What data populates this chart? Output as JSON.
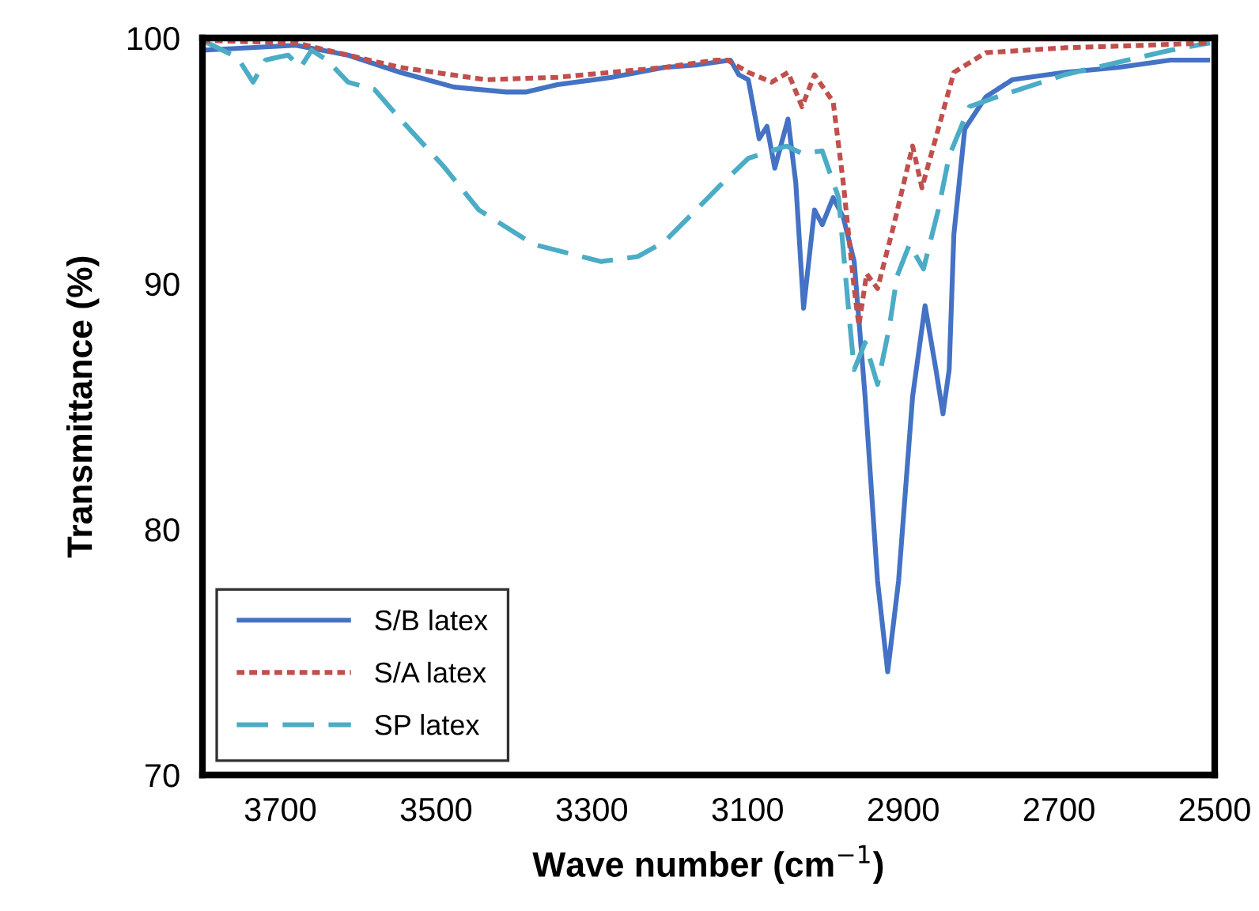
{
  "chart_data": {
    "type": "line",
    "xlabel": "Wave number (cm$^{−1}$)",
    "ylabel": "Transmittance (%)",
    "xlim": [
      3800,
      2500
    ],
    "xticks": [
      3700,
      3500,
      3300,
      3100,
      2900,
      2700,
      2500
    ],
    "ylim": [
      70,
      100
    ],
    "yticks": [
      70,
      80,
      90,
      100
    ],
    "grid": false,
    "legend": "bottom left",
    "series": [
      {
        "name": "S/B latex",
        "color": "#4472c4",
        "line_style": "solid",
        "x": [
          3800,
          3680,
          3613,
          3546,
          3477,
          3410,
          3384,
          3344,
          3274,
          3207,
          3166,
          3122,
          3111,
          3099,
          3085,
          3075,
          3065,
          3048,
          3038,
          3028,
          3014,
          3004,
          2990,
          2977,
          2963,
          2949,
          2933,
          2920,
          2906,
          2888,
          2872,
          2858,
          2849,
          2841,
          2835,
          2821,
          2794,
          2760,
          2693,
          2624,
          2557,
          2506
        ],
        "values": [
          99.5,
          99.7,
          99.3,
          98.6,
          98.0,
          97.8,
          97.8,
          98.1,
          98.4,
          98.8,
          98.9,
          99.1,
          98.5,
          98.3,
          95.9,
          96.4,
          94.7,
          96.7,
          94.1,
          89.0,
          93.0,
          92.4,
          93.5,
          92.7,
          90.9,
          85.4,
          77.9,
          74.2,
          77.9,
          85.4,
          89.1,
          86.5,
          84.7,
          86.5,
          92.0,
          96.3,
          97.6,
          98.3,
          98.6,
          98.8,
          99.1,
          99.1
        ]
      },
      {
        "name": "S/A latex",
        "color": "#c0504d",
        "line_style": "dotted",
        "x": [
          3800,
          3680,
          3613,
          3546,
          3436,
          3344,
          3207,
          3140,
          3126,
          3099,
          3069,
          3048,
          3030,
          3014,
          2990,
          2977,
          2963,
          2957,
          2947,
          2933,
          2912,
          2888,
          2876,
          2855,
          2835,
          2794,
          2693,
          2591,
          2506
        ],
        "values": [
          99.9,
          99.8,
          99.3,
          98.8,
          98.3,
          98.4,
          98.8,
          99.1,
          99.1,
          98.6,
          98.2,
          98.6,
          97.2,
          98.5,
          97.4,
          94.1,
          89.8,
          88.3,
          90.4,
          89.8,
          92.4,
          95.6,
          93.9,
          96.3,
          98.6,
          99.4,
          99.6,
          99.7,
          99.8
        ]
      },
      {
        "name": "SP latex",
        "color": "#4bacc6",
        "line_style": "dashed",
        "x": [
          3800,
          3755,
          3735,
          3719,
          3705,
          3690,
          3674,
          3660,
          3640,
          3613,
          3579,
          3546,
          3491,
          3445,
          3375,
          3288,
          3241,
          3207,
          3166,
          3132,
          3099,
          3050,
          3030,
          3004,
          2983,
          2969,
          2963,
          2949,
          2933,
          2918,
          2908,
          2892,
          2874,
          2855,
          2841,
          2815,
          2780,
          2693,
          2612,
          2557,
          2506
        ],
        "values": [
          99.9,
          99.2,
          98.2,
          99.1,
          99.2,
          99.3,
          98.8,
          99.5,
          99.1,
          98.2,
          97.9,
          96.7,
          94.8,
          93.0,
          91.6,
          90.9,
          91.1,
          91.7,
          93.0,
          94.1,
          95.1,
          95.6,
          95.3,
          95.4,
          93.5,
          88.5,
          86.5,
          87.6,
          85.9,
          88.2,
          90.3,
          91.6,
          90.6,
          93.0,
          95.2,
          97.2,
          97.6,
          98.5,
          99.1,
          99.5,
          99.8
        ]
      }
    ]
  }
}
